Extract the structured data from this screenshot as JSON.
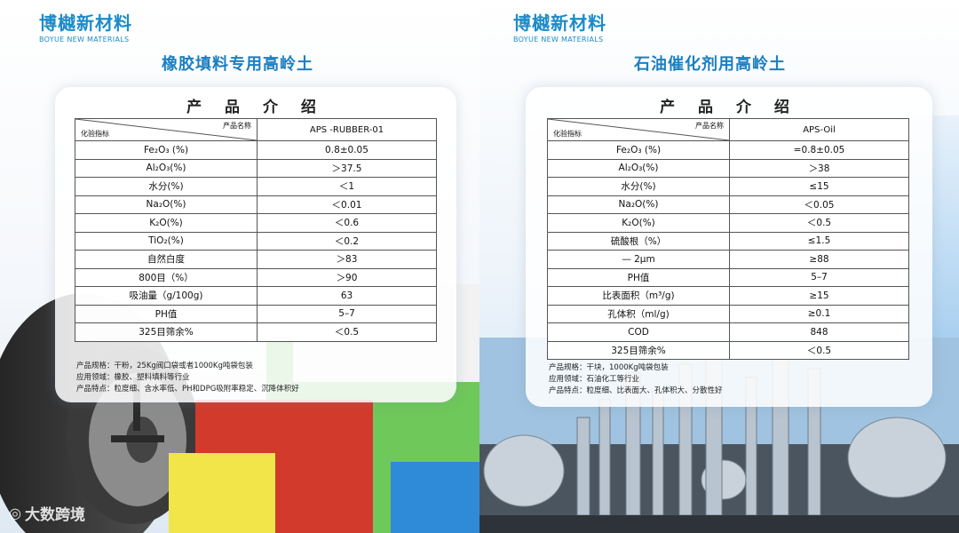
{
  "left": {
    "brand_cn": "博樾新材料",
    "brand_en": "BOYUE NEW MATERIALS",
    "subtitle": "橡胶填料专用高岭土",
    "card_title": "产 品 介 绍",
    "header_col1_top": "产品名称",
    "header_col1_bottom": "化验指标",
    "product_name": "APS -RUBBER-01",
    "rows": [
      {
        "k": "Fe₂O₃ (%)",
        "v": "0.8±0.05"
      },
      {
        "k": "Al₂O₃(%)",
        "v": "＞37.5"
      },
      {
        "k": "水分(%)",
        "v": "＜1"
      },
      {
        "k": "Na₂O(%)",
        "v": "＜0.01"
      },
      {
        "k": "K₂O(%)",
        "v": "＜0.6"
      },
      {
        "k": "TiO₂(%)",
        "v": "＜0.2"
      },
      {
        "k": "自然白度",
        "v": "＞83"
      },
      {
        "k": "800目（%）",
        "v": "＞90"
      },
      {
        "k": "吸油量（g/100g)",
        "v": "63"
      },
      {
        "k": "PH值",
        "v": "5–7"
      },
      {
        "k": "325目筛余%",
        "v": "＜0.5"
      }
    ],
    "notes": [
      "产品规格：干粉，25Kg阀口袋或者1000Kg吨袋包装",
      "应用领域：橡胶、塑料填料等行业",
      "产品特点：粒度细、含水率低、PH和DPG吸附率稳定、沉降体积好"
    ]
  },
  "right": {
    "brand_cn": "博樾新材料",
    "brand_en": "BOYUE NEW MATERIALS",
    "subtitle": "石油催化剂用高岭土",
    "card_title": "产 品 介 绍",
    "header_col1_top": "产品名称",
    "header_col1_bottom": "化验指标",
    "product_name": "APS-Oil",
    "rows": [
      {
        "k": "Fe₂O₃ (%)",
        "v": "=0.8±0.05"
      },
      {
        "k": "Al₂O₃(%)",
        "v": "＞38"
      },
      {
        "k": "水分(%)",
        "v": "≤15"
      },
      {
        "k": "Na₂O(%)",
        "v": "＜0.05"
      },
      {
        "k": "K₂O(%)",
        "v": "＜0.5"
      },
      {
        "k": "硫酸根（%）",
        "v": "≤1.5"
      },
      {
        "k": "— 2μm",
        "v": "≥88"
      },
      {
        "k": "PH值",
        "v": "5–7"
      },
      {
        "k": "比表面积（m³/g)",
        "v": "≥15"
      },
      {
        "k": "孔体积（ml/g)",
        "v": "≥0.1"
      },
      {
        "k": "COD",
        "v": "848"
      },
      {
        "k": "325目筛余%",
        "v": "＜0.5"
      }
    ],
    "notes": [
      "产品规格：干块，1000Kg吨袋包装",
      "应用领域：石油化工等行业",
      "产品特点：粒度细、比表面大、孔体积大、分散性好"
    ]
  },
  "watermark": "大数跨境"
}
